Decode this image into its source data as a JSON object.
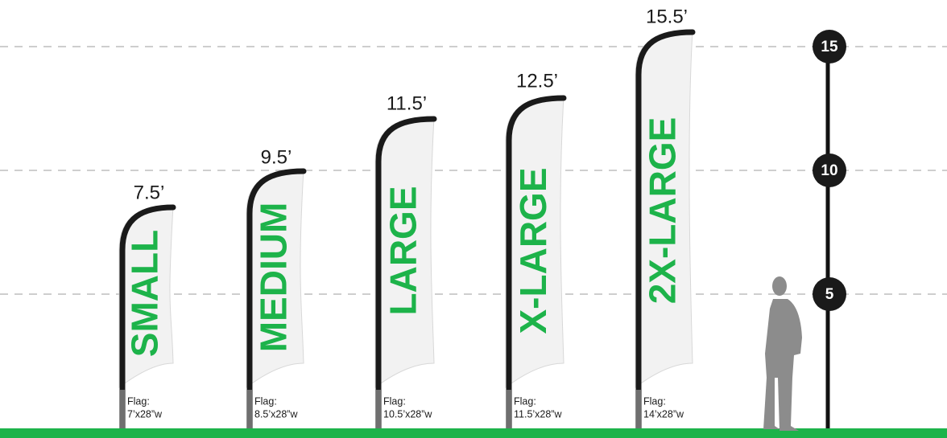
{
  "flags": [
    {
      "height": "7.5’",
      "name": "SMALL",
      "label": "Flag:",
      "size": "7’x28”w"
    },
    {
      "height": "9.5’",
      "name": "MEDIUM",
      "label": "Flag:",
      "size": "8.5’x28”w"
    },
    {
      "height": "11.5’",
      "name": "LARGE",
      "label": "Flag:",
      "size": "10.5’x28”w"
    },
    {
      "height": "12.5’",
      "name": "X-LARGE",
      "label": "Flag:",
      "size": "11.5’x28”w"
    },
    {
      "height": "15.5’",
      "name": "2X-LARGE",
      "label": "Flag:",
      "size": "14’x28”w"
    }
  ],
  "scale": [
    "15",
    "10",
    "5"
  ]
}
